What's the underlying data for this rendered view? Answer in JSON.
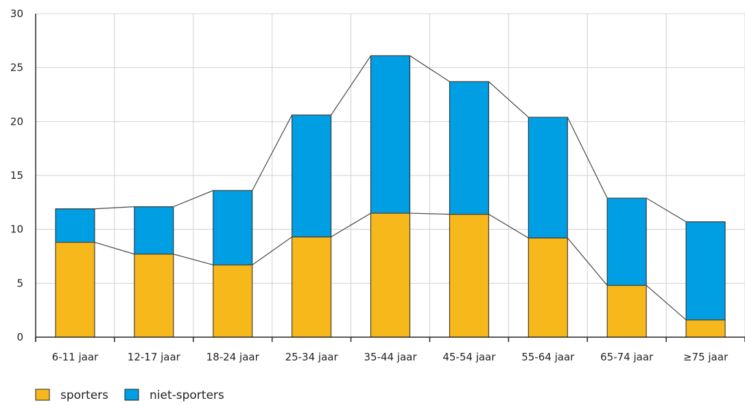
{
  "chart_data": {
    "type": "bar",
    "stacked": true,
    "categories": [
      "6-11 jaar",
      "12-17 jaar",
      "18-24 jaar",
      "25-34 jaar",
      "35-44 jaar",
      "45-54 jaar",
      "55-64 jaar",
      "65-74 jaar",
      "≥75 jaar"
    ],
    "series": [
      {
        "name": "sporters",
        "values": [
          8.8,
          7.7,
          6.7,
          9.3,
          11.5,
          11.4,
          9.2,
          4.8,
          1.6
        ]
      },
      {
        "name": "niet-sporters",
        "values": [
          3.1,
          4.4,
          6.9,
          11.3,
          14.6,
          12.3,
          11.2,
          8.1,
          9.1
        ]
      }
    ],
    "totals": [
      11.9,
      12.1,
      13.6,
      20.6,
      26.1,
      23.7,
      20.4,
      12.9,
      10.7
    ],
    "ylim": [
      0,
      30
    ],
    "yticks": [
      0,
      5,
      10,
      15,
      20,
      25,
      30
    ],
    "grid": true,
    "legend_position": "bottom-left",
    "colors": {
      "sporters": "#f7b81c",
      "niet-sporters": "#009fe3",
      "connector": "#444444"
    }
  }
}
